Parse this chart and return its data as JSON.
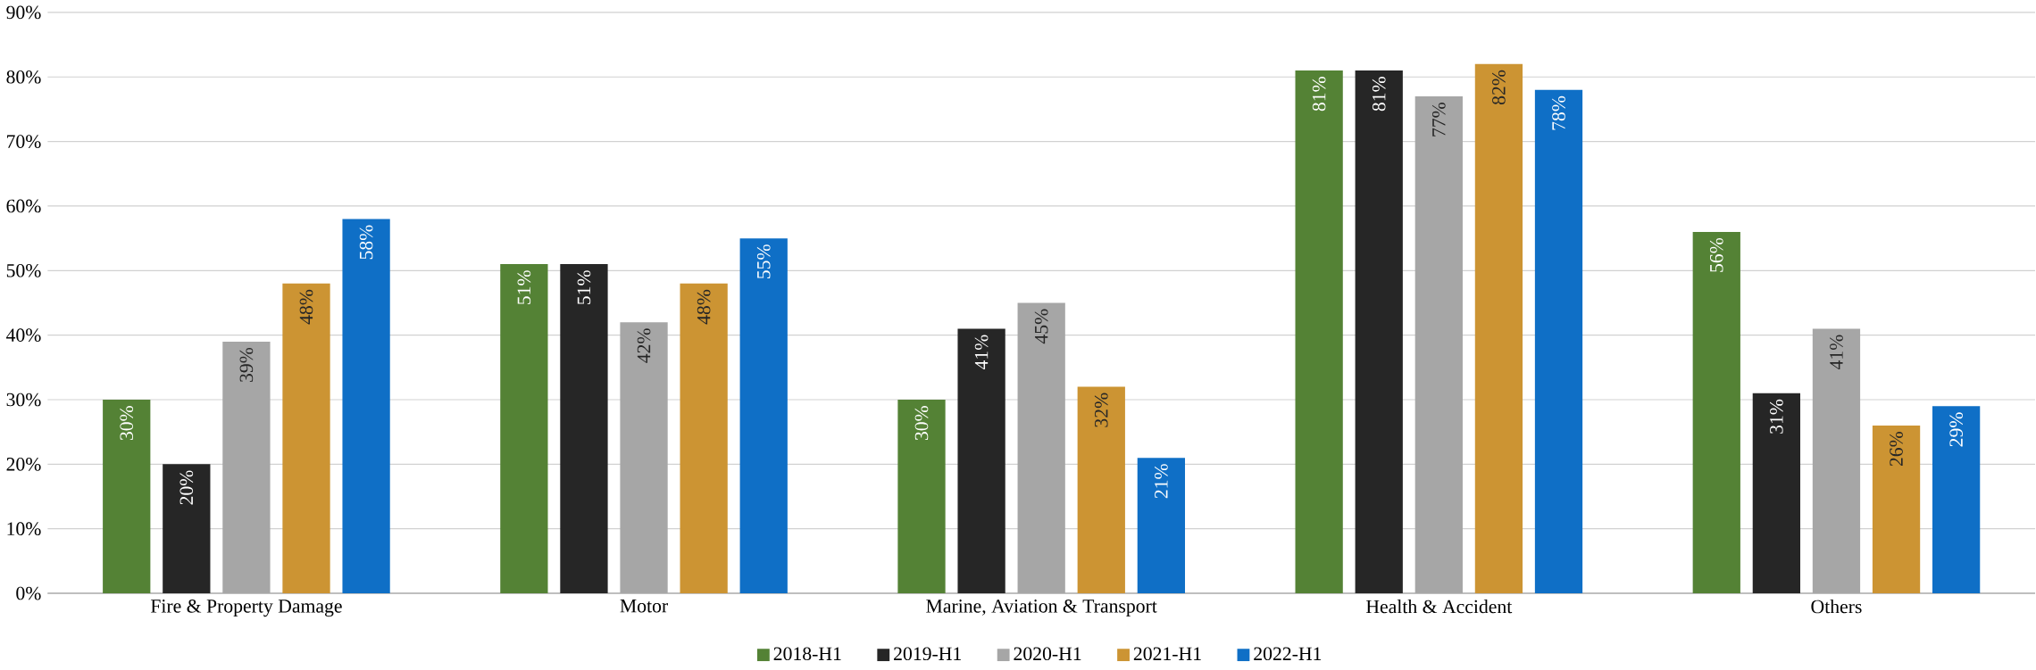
{
  "chart_data": {
    "type": "bar",
    "categories": [
      "Fire & Property Damage",
      "Motor",
      "Marine, Aviation & Transport",
      "Health & Accident",
      "Others"
    ],
    "series": [
      {
        "name": "2018-H1",
        "color": "#548235",
        "values": [
          30,
          51,
          30,
          81,
          56
        ]
      },
      {
        "name": "2019-H1",
        "color": "#262626",
        "values": [
          20,
          51,
          41,
          81,
          31
        ]
      },
      {
        "name": "2020-H1",
        "color": "#a6a6a6",
        "values": [
          39,
          42,
          45,
          77,
          41
        ]
      },
      {
        "name": "2021-H1",
        "color": "#cc9433",
        "values": [
          48,
          48,
          32,
          82,
          26
        ]
      },
      {
        "name": "2022-H1",
        "color": "#0f6fc6",
        "values": [
          58,
          55,
          21,
          78,
          29
        ]
      }
    ],
    "value_labels": [
      [
        "30%",
        "51%",
        "30%",
        "81%",
        "56%"
      ],
      [
        "20%",
        "51%",
        "41%",
        "81%",
        "31%"
      ],
      [
        "39%",
        "42%",
        "45%",
        "77%",
        "41%"
      ],
      [
        "48%",
        "48%",
        "32%",
        "82%",
        "26%"
      ],
      [
        "58%",
        "55%",
        "21%",
        "78%",
        "29%"
      ]
    ],
    "ylim": [
      0,
      90
    ],
    "yticks": [
      {
        "value": 0,
        "label": "0%"
      },
      {
        "value": 10,
        "label": "10%"
      },
      {
        "value": 20,
        "label": "20%"
      },
      {
        "value": 30,
        "label": "30%"
      },
      {
        "value": 40,
        "label": "40%"
      },
      {
        "value": 50,
        "label": "50%"
      },
      {
        "value": 60,
        "label": "60%"
      },
      {
        "value": 70,
        "label": "70%"
      },
      {
        "value": 80,
        "label": "80%"
      },
      {
        "value": 90,
        "label": "90%"
      }
    ],
    "grid": "y",
    "legend": "bottom"
  }
}
